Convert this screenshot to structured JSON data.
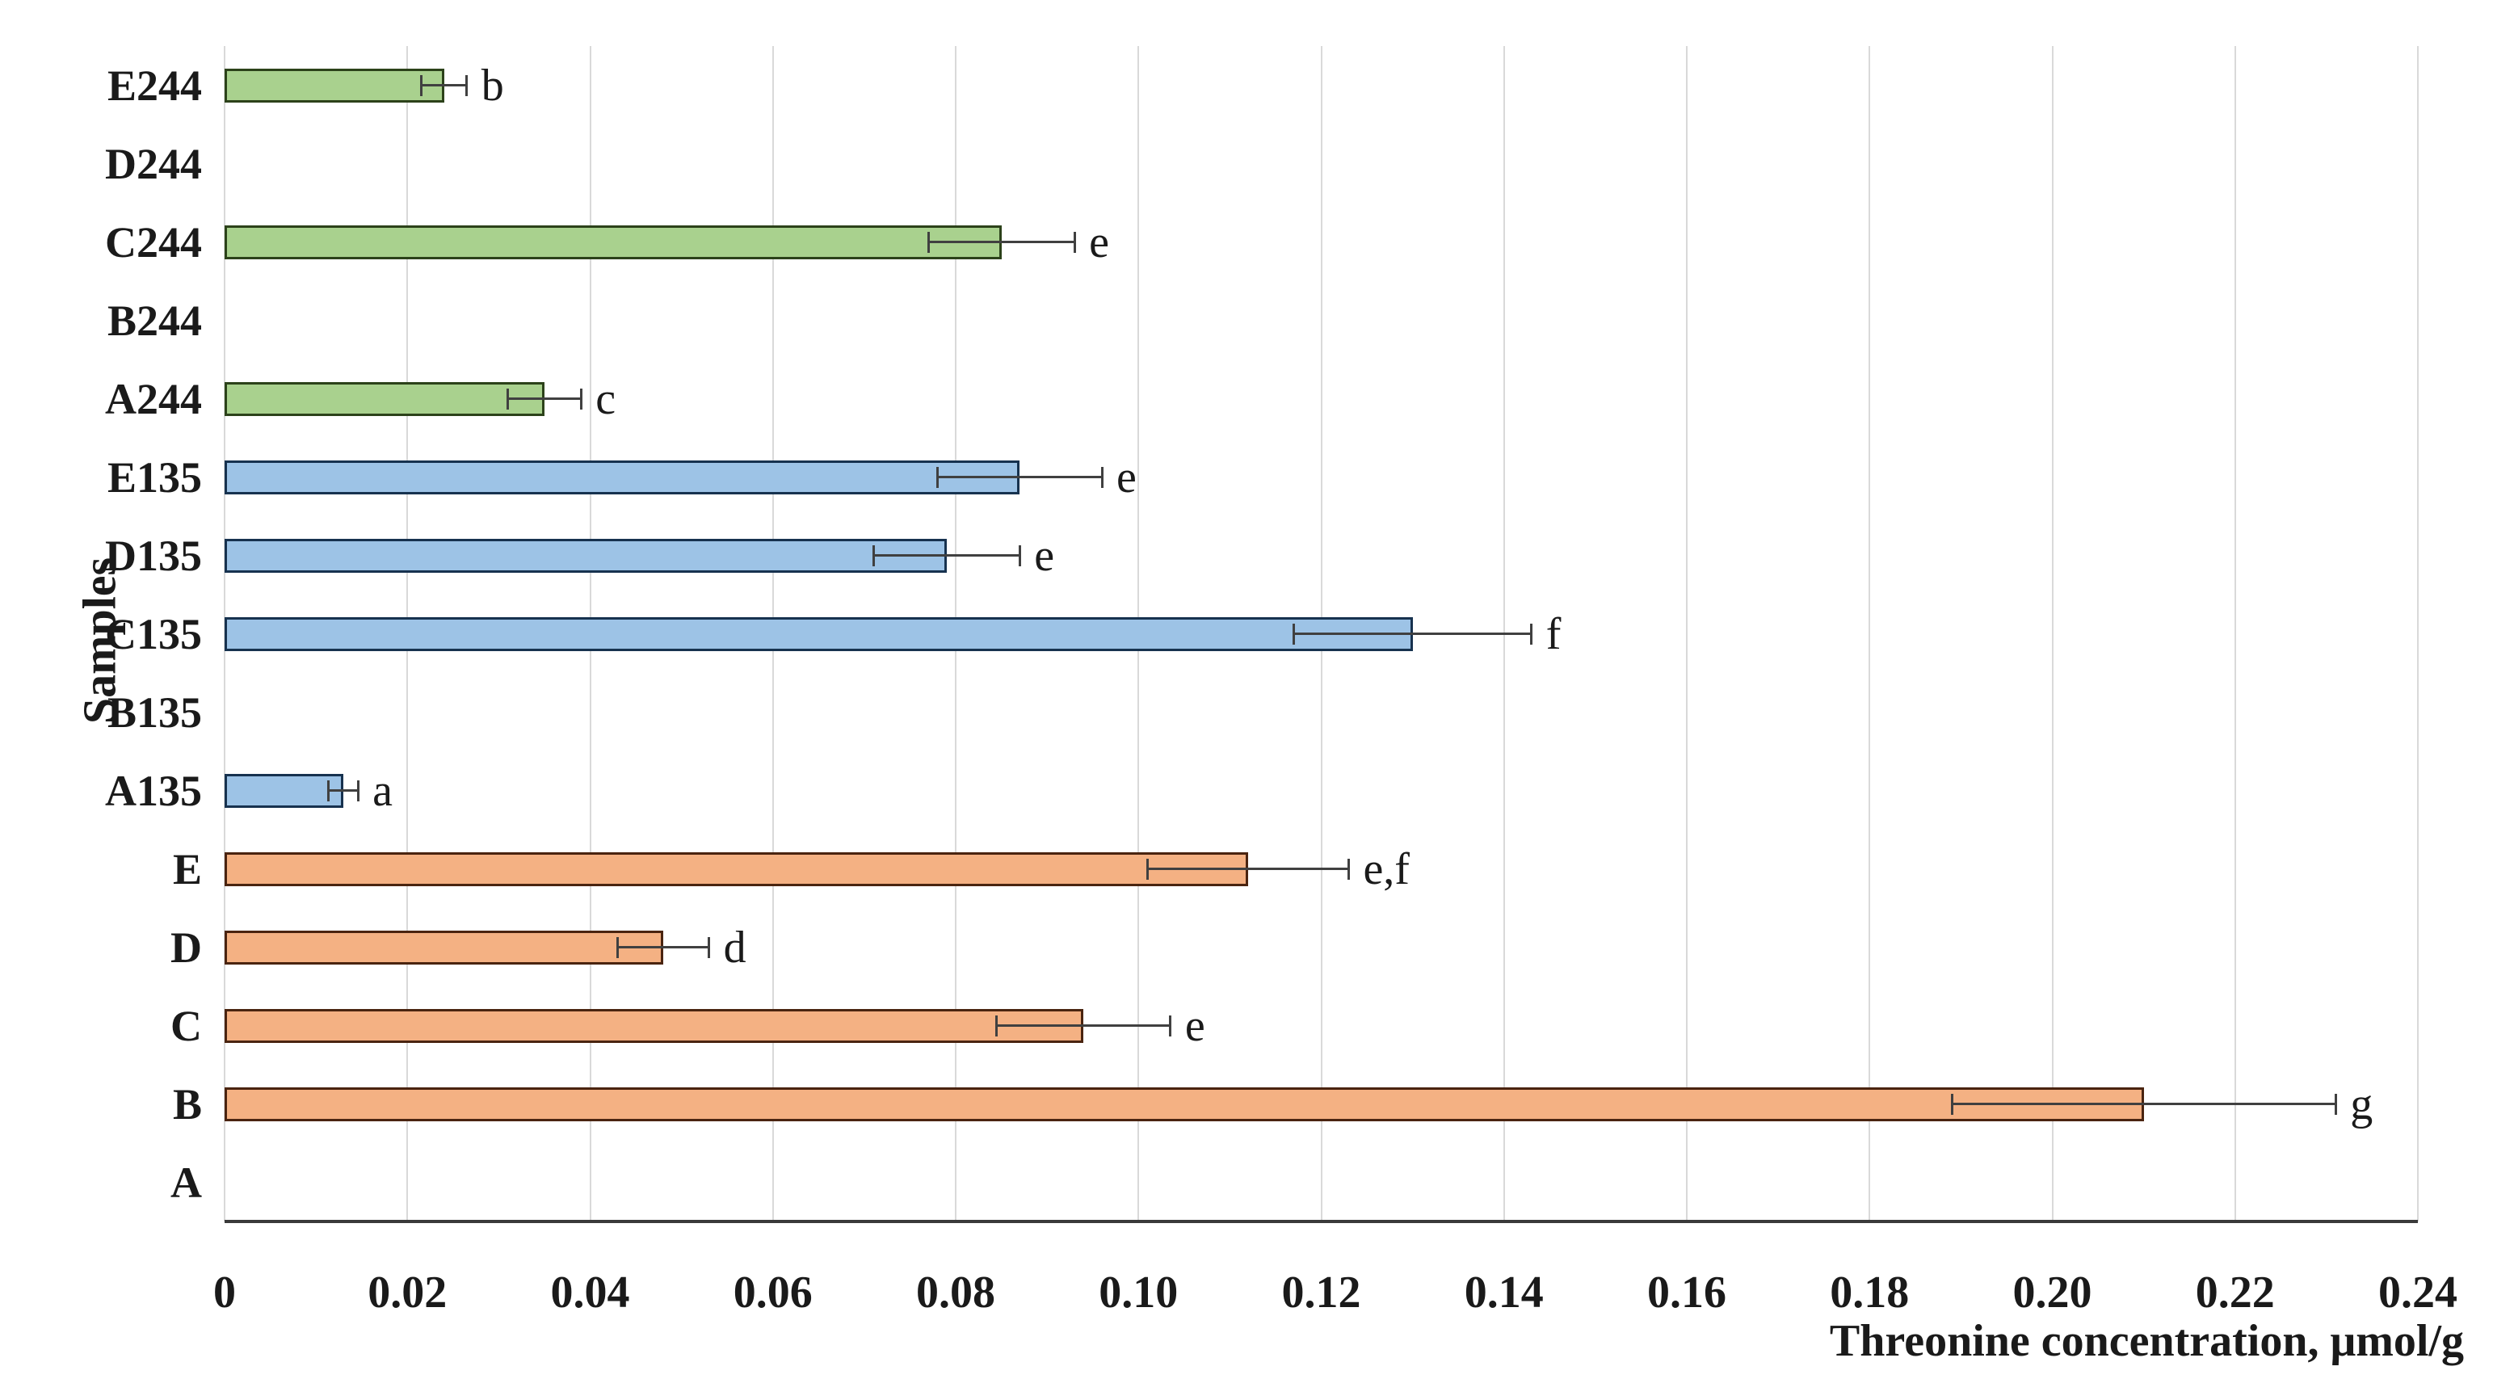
{
  "chart_data": {
    "type": "bar",
    "orientation": "horizontal",
    "title": "",
    "xlabel": "Threonine concentration, μmol/g",
    "ylabel": "Samples",
    "xlim": [
      0,
      0.24
    ],
    "grid": true,
    "legend": "none",
    "xticks": [
      "0",
      "0.02",
      "0.04",
      "0.06",
      "0.08",
      "0.10",
      "0.12",
      "0.14",
      "0.16",
      "0.18",
      "0.20",
      "0.22",
      "0.24"
    ],
    "categories_top_to_bottom": [
      "E244",
      "D244",
      "C244",
      "B244",
      "A244",
      "E135",
      "D135",
      "C135",
      "B135",
      "A135",
      "E",
      "D",
      "C",
      "B",
      "A"
    ],
    "series": [
      {
        "name": "Threonine concentration",
        "values": [
          0.024,
          0,
          0.085,
          0,
          0.035,
          0.087,
          0.079,
          0.13,
          0,
          0.013,
          0.112,
          0.048,
          0.094,
          0.21,
          0
        ],
        "errors": [
          0.0025,
          0,
          0.008,
          0,
          0.004,
          0.009,
          0.008,
          0.013,
          0,
          0.0016,
          0.011,
          0.005,
          0.0095,
          0.021,
          0
        ],
        "sig_letters": [
          "b",
          "",
          "e",
          "",
          "c",
          "e",
          "e",
          "f",
          "",
          "a",
          "e,f",
          "d",
          "e",
          "g",
          ""
        ]
      }
    ],
    "group_of_each_category": [
      "g244",
      "g244",
      "g244",
      "g244",
      "g244",
      "g135",
      "g135",
      "g135",
      "g135",
      "g135",
      "base",
      "base",
      "base",
      "base",
      "base"
    ],
    "colors": {
      "base": {
        "fill": "#F4B183",
        "border": "#4a2410"
      },
      "g135": {
        "fill": "#9DC3E6",
        "border": "#17324f"
      },
      "g244": {
        "fill": "#A9D18E",
        "border": "#2c421a"
      },
      "gridline": "#d9d9d9",
      "axis_line": "#3a3a3a",
      "error_bar": "#404040",
      "text": "#1a1a1a"
    }
  }
}
